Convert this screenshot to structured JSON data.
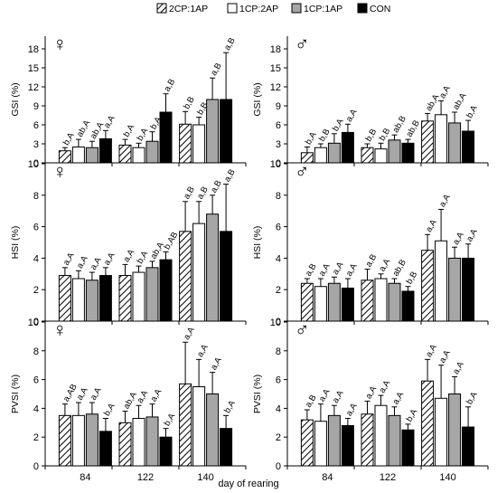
{
  "legend": [
    {
      "label": "2CP:1AP",
      "style": "hatch"
    },
    {
      "label": "1CP:2AP",
      "style": "white"
    },
    {
      "label": "1CP:1AP",
      "style": "gray"
    },
    {
      "label": "CON",
      "style": "black"
    }
  ],
  "colors": {
    "hatch_fill": "#ffffff",
    "white": "#ffffff",
    "gray": "#a6a6a6",
    "black": "#000000",
    "stroke": "#000000"
  },
  "x_label": "day of rearing",
  "chart_data": [
    {
      "type": "bar",
      "row": 0,
      "col": 0,
      "sex_symbol": "♀",
      "ylabel": "GSI (%)",
      "yticks": [
        0,
        3,
        6,
        9,
        12,
        15,
        18
      ],
      "ylim": [
        0,
        20
      ],
      "categories": [
        "84",
        "122",
        "140"
      ],
      "series": [
        {
          "name": "2CP:1AP",
          "values": [
            1.9,
            2.8,
            6.1
          ],
          "errors": [
            0.5,
            0.9,
            2.0
          ],
          "labels": [
            "b,A",
            "b,A",
            "b,B"
          ]
        },
        {
          "name": "1CP:2AP",
          "values": [
            2.5,
            2.4,
            6.0
          ],
          "errors": [
            1.2,
            0.7,
            1.2
          ],
          "labels": [
            "ab,A",
            "b,A",
            "b,B"
          ]
        },
        {
          "name": "1CP:1AP",
          "values": [
            2.4,
            3.4,
            10.0
          ],
          "errors": [
            1.0,
            1.5,
            3.4
          ],
          "labels": [
            "ab,A",
            "b,A",
            "a,B"
          ]
        },
        {
          "name": "CON",
          "values": [
            3.8,
            8.0,
            10.0
          ],
          "errors": [
            1.3,
            2.9,
            7.4
          ],
          "labels": [
            "a,A",
            "a,B",
            "a,B"
          ]
        }
      ]
    },
    {
      "type": "bar",
      "row": 0,
      "col": 1,
      "sex_symbol": "♂",
      "ylabel": "GSI (%)",
      "yticks": [
        0,
        3,
        6,
        9,
        12,
        15,
        18
      ],
      "ylim": [
        0,
        20
      ],
      "categories": [
        "84",
        "122",
        "140"
      ],
      "series": [
        {
          "name": "2CP:1AP",
          "values": [
            1.6,
            2.4,
            6.6
          ],
          "errors": [
            0.9,
            0.6,
            1.2
          ],
          "labels": [
            "b,A",
            "b,B",
            "ab,A"
          ]
        },
        {
          "name": "1CP:2AP",
          "values": [
            2.4,
            2.2,
            7.6
          ],
          "errors": [
            0.6,
            0.9,
            2.2
          ],
          "labels": [
            "b,B",
            "b,B",
            "a,A"
          ]
        },
        {
          "name": "1CP:1AP",
          "values": [
            3.1,
            3.6,
            6.3
          ],
          "errors": [
            1.5,
            0.8,
            1.7
          ],
          "labels": [
            "b,A",
            "ab,B",
            "ab,A"
          ]
        },
        {
          "name": "CON",
          "values": [
            4.8,
            3.1,
            5.0
          ],
          "errors": [
            1.3,
            0.6,
            1.7
          ],
          "labels": [
            "a,A",
            "ab,B",
            "b,A"
          ]
        }
      ]
    },
    {
      "type": "bar",
      "row": 1,
      "col": 0,
      "sex_symbol": "♀",
      "ylabel": "HSI (%)",
      "yticks": [
        0,
        2,
        4,
        6,
        8,
        10
      ],
      "ylim": [
        0,
        10
      ],
      "categories": [
        "84",
        "122",
        "140"
      ],
      "series": [
        {
          "name": "2CP:1AP",
          "values": [
            2.9,
            2.9,
            5.7
          ],
          "errors": [
            0.5,
            0.7,
            1.9
          ],
          "labels": [
            "a,A",
            "a,A",
            "a,B"
          ]
        },
        {
          "name": "1CP:2AP",
          "values": [
            2.7,
            3.1,
            6.2
          ],
          "errors": [
            0.5,
            0.4,
            1.4
          ],
          "labels": [
            "a,A",
            "b,A",
            "a,B"
          ]
        },
        {
          "name": "1CP:1AP",
          "values": [
            2.6,
            3.4,
            6.8
          ],
          "errors": [
            0.5,
            0.4,
            1.2
          ],
          "labels": [
            "a,A",
            "ab,A",
            "a,B"
          ]
        },
        {
          "name": "CON",
          "values": [
            2.9,
            3.9,
            5.7
          ],
          "errors": [
            0.5,
            0.5,
            3.0
          ],
          "labels": [
            "a,A",
            "b,AB",
            "a,B"
          ]
        }
      ]
    },
    {
      "type": "bar",
      "row": 1,
      "col": 1,
      "sex_symbol": "♂",
      "ylabel": "HSI (%)",
      "yticks": [
        0,
        2,
        4,
        6,
        8,
        10
      ],
      "ylim": [
        0,
        10
      ],
      "categories": [
        "84",
        "122",
        "140"
      ],
      "series": [
        {
          "name": "2CP:1AP",
          "values": [
            2.4,
            2.6,
            4.5
          ],
          "errors": [
            0.3,
            0.7,
            1.0
          ],
          "labels": [
            "a,B",
            "a,B",
            "a,A"
          ]
        },
        {
          "name": "1CP:2AP",
          "values": [
            2.2,
            2.7,
            5.1
          ],
          "errors": [
            0.5,
            0.3,
            2.0
          ],
          "labels": [
            "a,A",
            "a,A",
            "a,A"
          ]
        },
        {
          "name": "1CP:1AP",
          "values": [
            2.4,
            2.4,
            4.0
          ],
          "errors": [
            0.4,
            0.3,
            0.7
          ],
          "labels": [
            "a,A",
            "ab,B",
            "a,A"
          ]
        },
        {
          "name": "CON",
          "values": [
            2.1,
            1.9,
            4.0
          ],
          "errors": [
            0.6,
            0.3,
            0.9
          ],
          "labels": [
            "a,A",
            "b,B",
            "a,A"
          ]
        }
      ]
    },
    {
      "type": "bar",
      "row": 2,
      "col": 0,
      "sex_symbol": "♀",
      "ylabel": "PVSI (%)",
      "yticks": [
        0,
        2,
        4,
        6,
        8,
        10
      ],
      "ylim": [
        0,
        10
      ],
      "categories": [
        "84",
        "122",
        "140"
      ],
      "series": [
        {
          "name": "2CP:1AP",
          "values": [
            3.5,
            3.0,
            5.7
          ],
          "errors": [
            0.8,
            0.8,
            2.9
          ],
          "labels": [
            "a,AB",
            "ab,A",
            "a,A"
          ]
        },
        {
          "name": "1CP:2AP",
          "values": [
            3.5,
            3.3,
            5.5
          ],
          "errors": [
            0.9,
            0.9,
            1.9
          ],
          "labels": [
            "a,A",
            "a,A",
            "a,A"
          ]
        },
        {
          "name": "1CP:1AP",
          "values": [
            3.6,
            3.4,
            5.0
          ],
          "errors": [
            0.8,
            0.9,
            1.5
          ],
          "labels": [
            "a,A",
            "a,A",
            "a,A"
          ]
        },
        {
          "name": "CON",
          "values": [
            2.4,
            2.0,
            2.6
          ],
          "errors": [
            0.9,
            0.6,
            0.9
          ],
          "labels": [
            "b,A",
            "b,A",
            "b,A"
          ]
        }
      ]
    },
    {
      "type": "bar",
      "row": 2,
      "col": 1,
      "sex_symbol": "♂",
      "ylabel": "PVSI (%)",
      "yticks": [
        0,
        2,
        4,
        6,
        8,
        10
      ],
      "ylim": [
        0,
        10
      ],
      "categories": [
        "84",
        "122",
        "140"
      ],
      "series": [
        {
          "name": "2CP:1AP",
          "values": [
            3.2,
            3.6,
            5.9
          ],
          "errors": [
            0.7,
            0.9,
            1.5
          ],
          "labels": [
            "a,B",
            "a,A",
            "a,A"
          ]
        },
        {
          "name": "1CP:2AP",
          "values": [
            3.1,
            4.2,
            4.7
          ],
          "errors": [
            1.2,
            0.7,
            2.3
          ],
          "labels": [
            "a,A",
            "a,A",
            "a,A"
          ]
        },
        {
          "name": "1CP:1AP",
          "values": [
            3.5,
            3.5,
            5.0
          ],
          "errors": [
            0.7,
            0.6,
            1.2
          ],
          "labels": [
            "a,A",
            "a,A",
            "a,A"
          ]
        },
        {
          "name": "CON",
          "values": [
            2.8,
            2.5,
            2.7
          ],
          "errors": [
            0.5,
            0.4,
            1.4
          ],
          "labels": [
            "a,A",
            "b,A",
            "b,A"
          ]
        }
      ]
    }
  ]
}
